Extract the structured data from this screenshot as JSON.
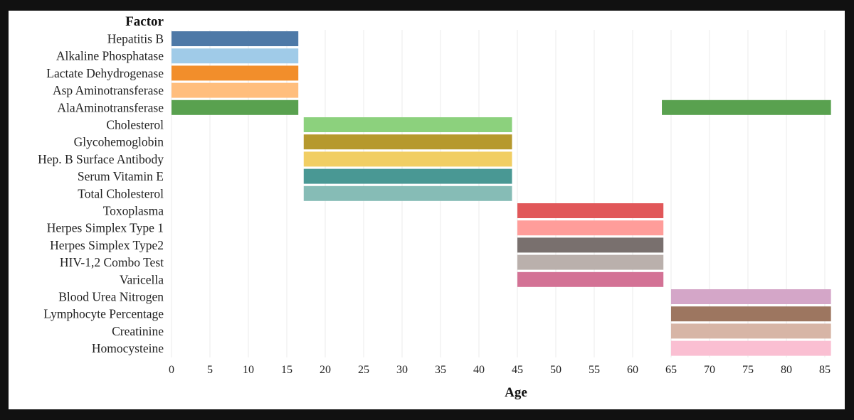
{
  "chart_data": {
    "type": "bar",
    "orientation": "horizontal-range",
    "xlabel": "Age",
    "ylabel": "Factor",
    "xlim": [
      0,
      86
    ],
    "xticks": [
      0,
      5,
      10,
      15,
      20,
      25,
      30,
      35,
      40,
      45,
      50,
      55,
      60,
      65,
      70,
      75,
      80,
      85
    ],
    "grid": true,
    "categories": [
      "Hepatitis B",
      "Alkaline Phosphatase",
      "Lactate Dehydrogenase",
      "Asp Aminotransferase",
      "AlaAminotransferase",
      "Cholesterol",
      "Glycohemoglobin",
      "Hep. B Surface Antibody",
      "Serum Vitamin E",
      "Total Cholesterol",
      "Toxoplasma",
      "Herpes Simplex Type 1",
      "Herpes Simplex Type2",
      "HIV-1,2 Combo Test",
      "Varicella",
      "Blood Urea Nitrogen",
      "Lymphocyte Percentage",
      "Creatinine",
      "Homocysteine"
    ],
    "bars": [
      {
        "factor": "Hepatitis B",
        "start": 0,
        "end": 16.5,
        "color": "#4e79a7"
      },
      {
        "factor": "Alkaline Phosphatase",
        "start": 0,
        "end": 16.5,
        "color": "#a0cbe8"
      },
      {
        "factor": "Lactate Dehydrogenase",
        "start": 0,
        "end": 16.5,
        "color": "#f28e2b"
      },
      {
        "factor": "Asp Aminotransferase",
        "start": 0,
        "end": 16.5,
        "color": "#ffbe7d"
      },
      {
        "factor": "AlaAminotransferase",
        "start": 0,
        "end": 16.5,
        "color": "#59a14f"
      },
      {
        "factor": "AlaAminotransferase",
        "start": 63.8,
        "end": 85.8,
        "color": "#59a14f"
      },
      {
        "factor": "Cholesterol",
        "start": 17.2,
        "end": 44.3,
        "color": "#8cd17d"
      },
      {
        "factor": "Glycohemoglobin",
        "start": 17.2,
        "end": 44.3,
        "color": "#b6992d"
      },
      {
        "factor": "Hep. B Surface Antibody",
        "start": 17.2,
        "end": 44.3,
        "color": "#f1ce63"
      },
      {
        "factor": "Serum Vitamin E",
        "start": 17.2,
        "end": 44.3,
        "color": "#499894"
      },
      {
        "factor": "Total Cholesterol",
        "start": 17.2,
        "end": 44.3,
        "color": "#86bcb6"
      },
      {
        "factor": "Toxoplasma",
        "start": 45.0,
        "end": 64.0,
        "color": "#e15759"
      },
      {
        "factor": "Herpes Simplex Type 1",
        "start": 45.0,
        "end": 64.0,
        "color": "#ff9d9a"
      },
      {
        "factor": "Herpes Simplex Type2",
        "start": 45.0,
        "end": 64.0,
        "color": "#79706e"
      },
      {
        "factor": "HIV-1,2 Combo Test",
        "start": 45.0,
        "end": 64.0,
        "color": "#bab0ac"
      },
      {
        "factor": "Varicella",
        "start": 45.0,
        "end": 64.0,
        "color": "#d37295"
      },
      {
        "factor": "Blood Urea Nitrogen",
        "start": 65.0,
        "end": 85.8,
        "color": "#d4a6c8"
      },
      {
        "factor": "Lymphocyte Percentage",
        "start": 65.0,
        "end": 85.8,
        "color": "#9d7660"
      },
      {
        "factor": "Creatinine",
        "start": 65.0,
        "end": 85.8,
        "color": "#d7b5a6"
      },
      {
        "factor": "Homocysteine",
        "start": 65.0,
        "end": 85.8,
        "color": "#fabfd2"
      }
    ]
  }
}
